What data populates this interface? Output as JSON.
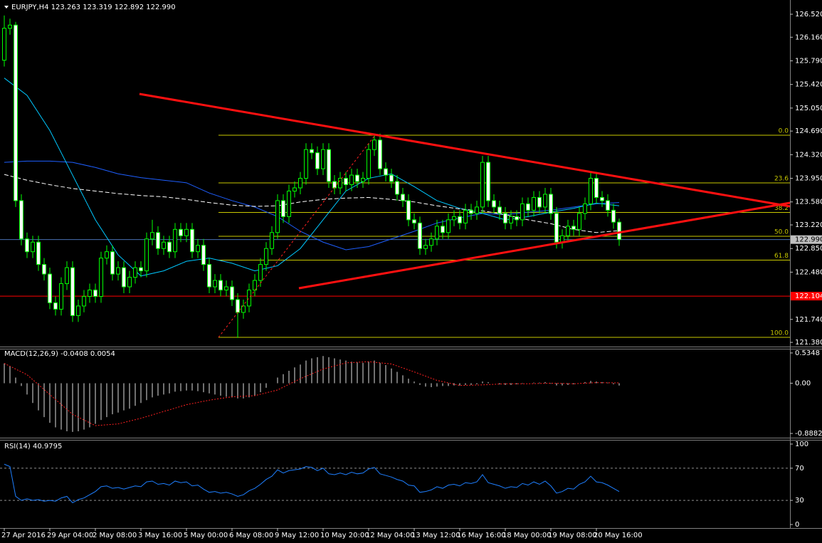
{
  "chart_data": {
    "type": "candlestick",
    "title": "EURJPY,H4  123.263 123.319 122.892 122.990",
    "categories": [
      "27 Apr 2016",
      null,
      null,
      null,
      null,
      null,
      null,
      null,
      "29 Apr 04:00",
      null,
      null,
      null,
      null,
      null,
      null,
      null,
      "2 May 08:00",
      null,
      null,
      null,
      null,
      null,
      null,
      null,
      "3 May 16:00",
      null,
      null,
      null,
      null,
      null,
      null,
      null,
      "5 May 00:00",
      null,
      null,
      null,
      null,
      null,
      null,
      null,
      "6 May 08:00",
      null,
      null,
      null,
      null,
      null,
      null,
      null,
      "9 May 12:00",
      null,
      null,
      null,
      null,
      null,
      null,
      null,
      "10 May 20:00",
      null,
      null,
      null,
      null,
      null,
      null,
      null,
      "12 May 04:00",
      null,
      null,
      null,
      null,
      null,
      null,
      null,
      "13 May 12:00",
      null,
      null,
      null,
      null,
      null,
      null,
      null,
      "16 May 16:00",
      null,
      null,
      null,
      null,
      null,
      null,
      null,
      "18 May 00:00",
      null,
      null,
      null,
      null,
      null,
      null,
      null,
      "19 May 08:00",
      null,
      null,
      null,
      null,
      null,
      null,
      null,
      "20 May 16:00",
      null,
      null,
      null,
      null
    ],
    "open": [
      125.8,
      126.3,
      126.35,
      123.6,
      123.0,
      122.8,
      122.95,
      122.6,
      122.45,
      122.0,
      121.9,
      122.3,
      122.55,
      121.8,
      121.95,
      122.1,
      122.2,
      122.1,
      122.7,
      122.8,
      122.45,
      122.55,
      122.25,
      122.4,
      122.55,
      122.5,
      123.0,
      123.1,
      122.85,
      122.95,
      122.8,
      123.15,
      123.05,
      123.15,
      122.8,
      122.9,
      122.6,
      122.25,
      122.35,
      122.2,
      122.25,
      122.05,
      121.85,
      121.95,
      122.2,
      122.35,
      122.6,
      122.85,
      123.1,
      123.6,
      123.35,
      123.75,
      123.8,
      123.95,
      124.4,
      124.35,
      124.1,
      124.4,
      123.9,
      123.8,
      123.95,
      123.85,
      124.0,
      123.9,
      123.95,
      124.4,
      124.55,
      124.1,
      124.0,
      123.9,
      123.7,
      123.6,
      123.3,
      123.25,
      122.85,
      122.9,
      123.0,
      123.2,
      123.1,
      123.3,
      123.35,
      123.25,
      123.45,
      123.4,
      123.5,
      124.2,
      123.6,
      123.5,
      123.4,
      123.25,
      123.35,
      123.3,
      123.55,
      123.45,
      123.65,
      123.5,
      123.7,
      123.4,
      122.95,
      123.05,
      123.2,
      123.15,
      123.4,
      123.55,
      123.95,
      123.65,
      123.6,
      123.45,
      123.263
    ],
    "high": [
      126.5,
      126.45,
      126.4,
      123.7,
      123.1,
      123.05,
      123.05,
      122.7,
      122.55,
      122.1,
      122.4,
      122.65,
      122.65,
      122.05,
      122.2,
      122.3,
      122.3,
      122.8,
      122.9,
      122.9,
      122.65,
      122.65,
      122.5,
      122.65,
      122.65,
      123.1,
      123.3,
      123.2,
      123.05,
      123.05,
      123.25,
      123.25,
      123.25,
      123.25,
      123.0,
      123.0,
      122.7,
      122.45,
      122.45,
      122.35,
      122.35,
      122.15,
      122.05,
      122.3,
      122.45,
      122.7,
      122.95,
      123.2,
      123.7,
      123.7,
      123.85,
      123.9,
      124.05,
      124.5,
      124.5,
      124.45,
      124.5,
      124.5,
      124.0,
      124.05,
      124.05,
      124.1,
      124.1,
      124.05,
      124.5,
      124.65,
      124.65,
      124.2,
      124.1,
      124.0,
      123.8,
      123.7,
      123.4,
      123.35,
      123.0,
      123.1,
      123.3,
      123.3,
      123.4,
      123.45,
      123.45,
      123.55,
      123.55,
      123.6,
      124.3,
      124.3,
      123.7,
      123.6,
      123.5,
      123.45,
      123.45,
      123.65,
      123.65,
      123.75,
      123.75,
      123.8,
      123.8,
      123.5,
      123.15,
      123.3,
      123.3,
      123.5,
      123.65,
      124.05,
      124.05,
      123.75,
      123.7,
      123.55,
      123.319
    ],
    "low": [
      125.7,
      126.2,
      123.5,
      122.9,
      122.7,
      122.7,
      122.5,
      122.35,
      121.9,
      121.8,
      121.8,
      122.2,
      121.7,
      121.7,
      121.85,
      122.0,
      122.0,
      122.0,
      122.6,
      122.35,
      122.35,
      122.15,
      122.15,
      122.3,
      122.4,
      122.4,
      122.9,
      122.75,
      122.75,
      122.7,
      122.7,
      122.95,
      122.95,
      122.7,
      122.7,
      122.5,
      122.15,
      122.15,
      122.1,
      122.1,
      121.95,
      121.45,
      121.75,
      121.85,
      122.1,
      122.25,
      122.5,
      122.75,
      123.0,
      123.25,
      123.25,
      123.65,
      123.7,
      123.85,
      124.25,
      124.0,
      124.0,
      123.8,
      123.7,
      123.7,
      123.75,
      123.75,
      123.8,
      123.8,
      123.85,
      124.3,
      124.0,
      123.9,
      123.8,
      123.6,
      123.5,
      123.2,
      123.15,
      122.75,
      122.75,
      122.8,
      122.9,
      123.0,
      123.0,
      123.2,
      123.15,
      123.15,
      123.3,
      123.3,
      123.4,
      123.5,
      123.4,
      123.3,
      123.15,
      123.15,
      123.2,
      123.2,
      123.35,
      123.35,
      123.4,
      123.4,
      123.3,
      122.85,
      122.85,
      122.95,
      123.05,
      123.05,
      123.3,
      123.45,
      123.55,
      123.5,
      123.35,
      123.16,
      122.892
    ],
    "close": [
      126.3,
      126.35,
      123.6,
      123.0,
      122.8,
      122.95,
      122.6,
      122.45,
      122.0,
      121.9,
      122.3,
      122.55,
      121.8,
      121.95,
      122.1,
      122.2,
      122.1,
      122.7,
      122.8,
      122.45,
      122.55,
      122.25,
      122.4,
      122.55,
      122.5,
      123.0,
      123.1,
      122.85,
      122.95,
      122.8,
      123.15,
      123.05,
      123.15,
      122.8,
      122.9,
      122.6,
      122.25,
      122.35,
      122.2,
      122.25,
      122.05,
      121.85,
      121.95,
      122.2,
      122.35,
      122.6,
      122.85,
      123.1,
      123.6,
      123.35,
      123.75,
      123.8,
      123.95,
      124.4,
      124.35,
      124.1,
      124.4,
      123.9,
      123.8,
      123.95,
      123.85,
      124.0,
      123.9,
      123.95,
      124.4,
      124.55,
      124.1,
      124.0,
      123.9,
      123.7,
      123.6,
      123.3,
      123.25,
      122.85,
      122.9,
      123.0,
      123.2,
      123.1,
      123.3,
      123.35,
      123.25,
      123.45,
      123.4,
      123.5,
      124.2,
      123.6,
      123.5,
      123.4,
      123.25,
      123.35,
      123.3,
      123.55,
      123.45,
      123.65,
      123.5,
      123.7,
      123.4,
      122.95,
      123.05,
      123.2,
      123.15,
      123.4,
      123.55,
      123.95,
      123.65,
      123.6,
      123.45,
      123.263,
      122.99
    ],
    "colors": {
      "up": "#000000",
      "down": "#ffffff",
      "wick": "#00ff00"
    },
    "ylim": [
      121.314,
      126.743
    ],
    "yticks": [
      {
        "value": 126.52,
        "label": "126.520"
      },
      {
        "value": 126.16,
        "label": "126.160"
      },
      {
        "value": 125.79,
        "label": "125.790"
      },
      {
        "value": 125.42,
        "label": "125.420"
      },
      {
        "value": 125.05,
        "label": "125.050"
      },
      {
        "value": 124.69,
        "label": "124.690"
      },
      {
        "value": 124.32,
        "label": "124.320"
      },
      {
        "value": 123.95,
        "label": "123.950"
      },
      {
        "value": 123.58,
        "label": "123.580"
      },
      {
        "value": 123.22,
        "label": "123.220"
      },
      {
        "value": 122.85,
        "label": "122.850"
      },
      {
        "value": 122.48,
        "label": "122.480"
      },
      {
        "value": 121.74,
        "label": "121.740"
      },
      {
        "value": 121.38,
        "label": "121.380"
      }
    ],
    "price_markers": [
      {
        "value": 122.99,
        "label": "122.990",
        "color": "#c0c0c0",
        "line": "#4a6fb0"
      },
      {
        "value": 122.104,
        "label": "122.104",
        "color": "#ff0000",
        "line": "#ff0000"
      }
    ],
    "moving_averages": [
      {
        "color": "#1e5fff",
        "dashed": false,
        "values": [
          124.2,
          124.22,
          124.22,
          124.2,
          124.12,
          124.02,
          123.96,
          123.92,
          123.88,
          123.72,
          123.6,
          123.5,
          123.35,
          123.12,
          122.95,
          122.83,
          122.88,
          123.0,
          123.12,
          123.25,
          123.33,
          123.4,
          123.38,
          123.42,
          123.45,
          123.5,
          123.55,
          123.57
        ]
      },
      {
        "color": "#00c8ff",
        "dashed": false,
        "values": [
          125.52,
          125.25,
          124.7,
          124.0,
          123.3,
          122.75,
          122.42,
          122.5,
          122.65,
          122.7,
          122.62,
          122.5,
          122.58,
          122.85,
          123.3,
          123.75,
          123.95,
          124.02,
          123.82,
          123.6,
          123.48,
          123.4,
          123.3,
          123.35,
          123.42,
          123.48,
          123.56,
          123.52
        ]
      },
      {
        "color": "#ffffff",
        "dashed": true,
        "values": [
          124.01,
          123.92,
          123.85,
          123.79,
          123.75,
          123.71,
          123.68,
          123.66,
          123.62,
          123.57,
          123.53,
          123.51,
          123.52,
          123.58,
          123.62,
          123.64,
          123.65,
          123.62,
          123.58,
          123.52,
          123.47,
          123.44,
          123.38,
          123.3,
          123.24,
          123.15,
          123.1,
          123.13
        ]
      }
    ],
    "fib": {
      "color": "#c8c800",
      "labels": [
        "0.0",
        "23.6",
        "38.2",
        "50.0",
        "61.8",
        "100.0"
      ],
      "prices": [
        124.625,
        123.878,
        123.416,
        123.042,
        122.669,
        121.459
      ]
    },
    "macd": {
      "title": "MACD(12,26,9) -0.0408 0.0054",
      "histogram": [
        0.35,
        0.3,
        0.1,
        -0.05,
        -0.2,
        -0.35,
        -0.48,
        -0.6,
        -0.7,
        -0.78,
        -0.82,
        -0.85,
        -0.86,
        -0.85,
        -0.82,
        -0.78,
        -0.72,
        -0.65,
        -0.6,
        -0.55,
        -0.52,
        -0.48,
        -0.45,
        -0.4,
        -0.35,
        -0.3,
        -0.25,
        -0.22,
        -0.2,
        -0.18,
        -0.15,
        -0.14,
        -0.13,
        -0.13,
        -0.14,
        -0.16,
        -0.18,
        -0.2,
        -0.22,
        -0.24,
        -0.25,
        -0.27,
        -0.27,
        -0.25,
        -0.22,
        -0.16,
        -0.08,
        0.0,
        0.1,
        0.16,
        0.22,
        0.28,
        0.33,
        0.4,
        0.44,
        0.46,
        0.48,
        0.46,
        0.44,
        0.42,
        0.4,
        0.38,
        0.37,
        0.36,
        0.38,
        0.4,
        0.36,
        0.32,
        0.26,
        0.2,
        0.14,
        0.08,
        0.03,
        -0.03,
        -0.06,
        -0.07,
        -0.06,
        -0.05,
        -0.05,
        -0.04,
        -0.04,
        -0.03,
        -0.03,
        -0.02,
        0.03,
        0.02,
        0.0,
        -0.02,
        -0.03,
        -0.03,
        -0.02,
        -0.01,
        0.0,
        0.01,
        0.01,
        0.02,
        -0.01,
        -0.04,
        -0.04,
        -0.03,
        -0.02,
        0.0,
        0.02,
        0.04,
        0.03,
        0.02,
        0.01,
        -0.02,
        -0.0408
      ],
      "signal": [
        0.35,
        0.15,
        -0.2,
        -0.55,
        -0.75,
        -0.72,
        -0.62,
        -0.5,
        -0.38,
        -0.3,
        -0.24,
        -0.22,
        -0.12,
        0.08,
        0.25,
        0.36,
        0.38,
        0.34,
        0.2,
        0.05,
        -0.04,
        -0.03,
        -0.01,
        -0.01,
        0.0,
        -0.01,
        0.01,
        0.0054
      ],
      "hist_color": "#e0e0e0",
      "signal_color": "#ff2020",
      "ylim": [
        -0.963,
        0.597
      ],
      "yticks": [
        0.5348,
        {
          "value": 0,
          "label": "0.00"
        },
        -0.8882
      ]
    },
    "rsi": {
      "title": "RSI(14) 40.9795",
      "color": "#1e7fff",
      "values": [
        75,
        72,
        35,
        30,
        32,
        30,
        31,
        29,
        30,
        29,
        33,
        35,
        27,
        31,
        33,
        37,
        41,
        47,
        48,
        45,
        46,
        44,
        46,
        48,
        47,
        53,
        54,
        50,
        51,
        49,
        54,
        52,
        53,
        48,
        49,
        44,
        40,
        41,
        39,
        40,
        38,
        35,
        37,
        42,
        45,
        50,
        56,
        60,
        68,
        64,
        67,
        68,
        69,
        72,
        71,
        67,
        70,
        63,
        62,
        64,
        62,
        65,
        63,
        64,
        69,
        71,
        63,
        61,
        59,
        56,
        54,
        49,
        48,
        40,
        41,
        43,
        47,
        45,
        49,
        50,
        48,
        52,
        51,
        53,
        62,
        52,
        50,
        48,
        45,
        47,
        46,
        51,
        49,
        53,
        50,
        54,
        48,
        39,
        41,
        45,
        44,
        50,
        53,
        60,
        53,
        52,
        49,
        45,
        40.9795
      ],
      "ylim": [
        -4.4,
        104.4
      ],
      "yticks": [
        100,
        70,
        30,
        0
      ],
      "levels": [
        70,
        30
      ]
    }
  }
}
